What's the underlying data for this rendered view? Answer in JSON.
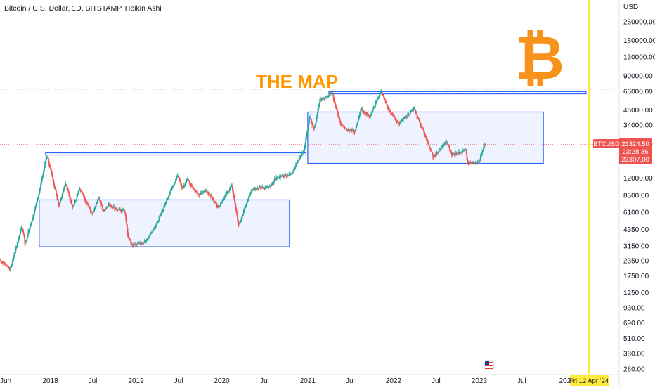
{
  "colors": {
    "up": "#26a69a",
    "down": "#ef5350",
    "box_border": "#2962ff",
    "box_fill": "#eef3ff",
    "annotation": "#ff9800",
    "bitcoin_logo": "#f7931a",
    "vertical_line": "#ffeb3b",
    "price_tag": "#ef5350"
  },
  "chart_data": {
    "type": "candlestick",
    "subtype": "heikin-ashi",
    "title": "Bitcoin / U.S. Dollar, 1D, BITSTAMP, Heikin Ashi",
    "currency_label": "USD",
    "y_scale": "log",
    "ylim": [
      250,
      400000
    ],
    "xlim": [
      "2017-06-01",
      "2024-04-12"
    ],
    "x_ticks": [
      "Jun",
      "2018",
      "Jul",
      "2019",
      "Jul",
      "2020",
      "Jul",
      "2021",
      "Jul",
      "2022",
      "Jul",
      "2023",
      "Jul",
      "202"
    ],
    "x_tick_dates": [
      "2017-06-01",
      "2018-01-01",
      "2018-07-01",
      "2019-01-01",
      "2019-07-01",
      "2020-01-01",
      "2020-07-01",
      "2021-01-01",
      "2021-07-01",
      "2022-01-01",
      "2022-07-01",
      "2023-01-01",
      "2023-07-01",
      "2024-01-01"
    ],
    "y_ticks": [
      "260000.00",
      "180000.00",
      "130000.00",
      "90000.00",
      "66000.00",
      "46000.00",
      "34000.00",
      "23307.00",
      "12000.00",
      "8500.00",
      "6100.00",
      "4350.00",
      "3150.00",
      "2350.00",
      "1750.00",
      "1250.00",
      "930.00",
      "690.00",
      "510.00",
      "380.00",
      "280.00"
    ],
    "y_tick_values": [
      260000,
      180000,
      130000,
      90000,
      66000,
      46000,
      34000,
      23307,
      12000,
      8500,
      6100,
      4350,
      3150,
      2350,
      1750,
      1250,
      930,
      690,
      510,
      380,
      280
    ],
    "price_path": [
      [
        "2017-06-01",
        2400
      ],
      [
        "2017-07-15",
        2000
      ],
      [
        "2017-09-01",
        4700
      ],
      [
        "2017-09-15",
        3300
      ],
      [
        "2017-11-01",
        7000
      ],
      [
        "2017-12-17",
        19000
      ],
      [
        "2018-02-06",
        7000
      ],
      [
        "2018-03-05",
        11000
      ],
      [
        "2018-04-06",
        6700
      ],
      [
        "2018-05-05",
        9700
      ],
      [
        "2018-06-28",
        5900
      ],
      [
        "2018-07-25",
        8300
      ],
      [
        "2018-08-14",
        6200
      ],
      [
        "2018-09-05",
        7200
      ],
      [
        "2018-10-15",
        6400
      ],
      [
        "2018-11-14",
        6300
      ],
      [
        "2018-11-25",
        3800
      ],
      [
        "2018-12-15",
        3200
      ],
      [
        "2019-02-08",
        3400
      ],
      [
        "2019-04-02",
        5000
      ],
      [
        "2019-05-15",
        8200
      ],
      [
        "2019-06-26",
        12800
      ],
      [
        "2019-07-17",
        9600
      ],
      [
        "2019-08-06",
        11800
      ],
      [
        "2019-09-24",
        8500
      ],
      [
        "2019-10-26",
        9500
      ],
      [
        "2019-12-17",
        6800
      ],
      [
        "2020-02-12",
        10300
      ],
      [
        "2020-03-12",
        4600
      ],
      [
        "2020-05-07",
        9800
      ],
      [
        "2020-07-26",
        10000
      ],
      [
        "2020-08-17",
        12000
      ],
      [
        "2020-10-22",
        13000
      ],
      [
        "2020-12-16",
        21000
      ],
      [
        "2021-01-08",
        40000
      ],
      [
        "2021-01-27",
        31000
      ],
      [
        "2021-02-21",
        56000
      ],
      [
        "2021-03-10",
        57000
      ],
      [
        "2021-04-14",
        64000
      ],
      [
        "2021-05-19",
        35000
      ],
      [
        "2021-06-22",
        31000
      ],
      [
        "2021-07-20",
        29700
      ],
      [
        "2021-08-14",
        47000
      ],
      [
        "2021-09-21",
        40000
      ],
      [
        "2021-11-09",
        67000
      ],
      [
        "2021-12-04",
        48000
      ],
      [
        "2022-01-24",
        35000
      ],
      [
        "2022-03-28",
        47000
      ],
      [
        "2022-05-12",
        29000
      ],
      [
        "2022-06-18",
        18000
      ],
      [
        "2022-08-14",
        24400
      ],
      [
        "2022-09-06",
        19000
      ],
      [
        "2022-11-05",
        21000
      ],
      [
        "2022-11-09",
        16000
      ],
      [
        "2022-12-31",
        16500
      ],
      [
        "2023-01-20",
        22800
      ],
      [
        "2023-01-29",
        23324.5
      ]
    ],
    "boxes": [
      {
        "from": "2017-11-15",
        "to": "2020-10-15",
        "low": 3100,
        "high": 7800
      },
      {
        "from": "2021-01-01",
        "to": "2023-10-01",
        "low": 16000,
        "high": 44000
      }
    ],
    "resistance_channels": [
      {
        "from": "2017-12-12",
        "to": "2020-12-25",
        "low": 19100,
        "high": 19700
      },
      {
        "from": "2021-04-01",
        "to": "2024-03-31",
        "low": 63000,
        "high": 65800
      }
    ],
    "dotted_levels": [
      69000,
      23324.5,
      1680
    ],
    "annotation": "THE MAP",
    "current_price": {
      "price": "23324.50",
      "countdown": "23:28:36",
      "symbol": "BTCUSD",
      "level": "23307.00"
    },
    "cursor_date_label": "Fri 12 Apr '24"
  }
}
